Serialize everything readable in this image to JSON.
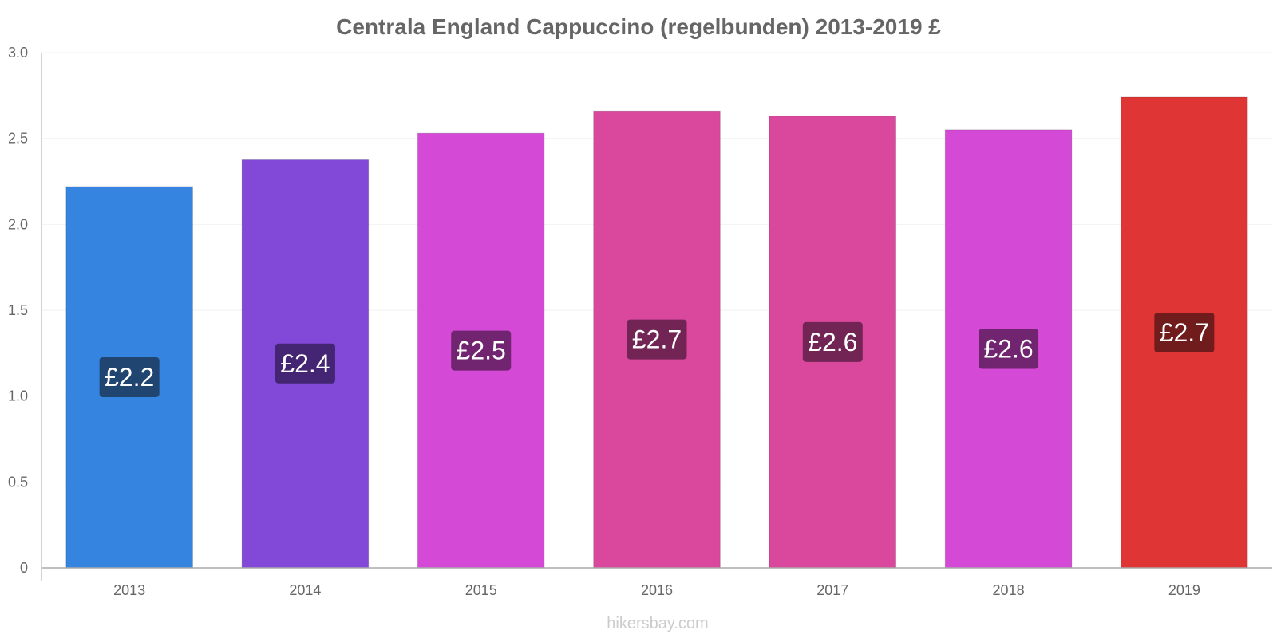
{
  "chart_data": {
    "type": "bar",
    "title": "Centrala England Cappuccino (regelbunden) 2013-2019 £",
    "xlabel": "",
    "ylabel": "",
    "categories": [
      "2013",
      "2014",
      "2015",
      "2016",
      "2017",
      "2018",
      "2019"
    ],
    "values": [
      2.22,
      2.38,
      2.53,
      2.66,
      2.63,
      2.55,
      2.74
    ],
    "data_labels": [
      "£2.2",
      "£2.4",
      "£2.5",
      "£2.7",
      "£2.6",
      "£2.6",
      "£2.7"
    ],
    "bar_colors": [
      "#3584e0",
      "#8249d9",
      "#d449d6",
      "#d9489c",
      "#d9489c",
      "#d449d6",
      "#e03535"
    ],
    "label_bg_colors": [
      "#1f4570",
      "#432573",
      "#712470",
      "#722555",
      "#722555",
      "#712470",
      "#711c1c"
    ],
    "ylim": [
      0,
      3
    ],
    "yticks": [
      "0",
      "0.5",
      "1.0",
      "1.5",
      "2.0",
      "2.5",
      "3.0"
    ],
    "ytick_values": [
      0,
      0.5,
      1.0,
      1.5,
      2.0,
      2.5,
      3.0
    ],
    "grid": true,
    "legend": "none"
  },
  "credit": "hikersbay.com"
}
